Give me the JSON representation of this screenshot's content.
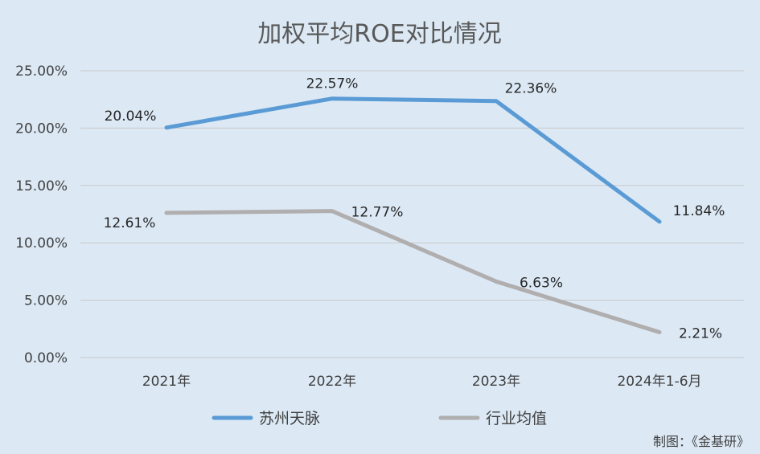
{
  "chart_data": {
    "type": "line",
    "title": "加权平均ROE对比情况",
    "categories": [
      "2021年",
      "2022年",
      "2023年",
      "2024年1-6月"
    ],
    "y_ticks": [
      "0.00%",
      "5.00%",
      "10.00%",
      "15.00%",
      "20.00%",
      "25.00%"
    ],
    "ylim": [
      0,
      25
    ],
    "grid": "horizontal",
    "legend_position": "bottom",
    "series": [
      {
        "name": "苏州天脉",
        "values": [
          20.04,
          22.57,
          22.36,
          11.84
        ],
        "labels": [
          "20.04%",
          "22.57%",
          "22.36%",
          "11.84%"
        ],
        "color": "#5b9bd5"
      },
      {
        "name": "行业均值",
        "values": [
          12.61,
          12.77,
          6.63,
          2.21
        ],
        "labels": [
          "12.61%",
          "12.77%",
          "6.63%",
          "2.21%"
        ],
        "color": "#b0aeae"
      }
    ]
  },
  "credit": "制图：《金基研》"
}
